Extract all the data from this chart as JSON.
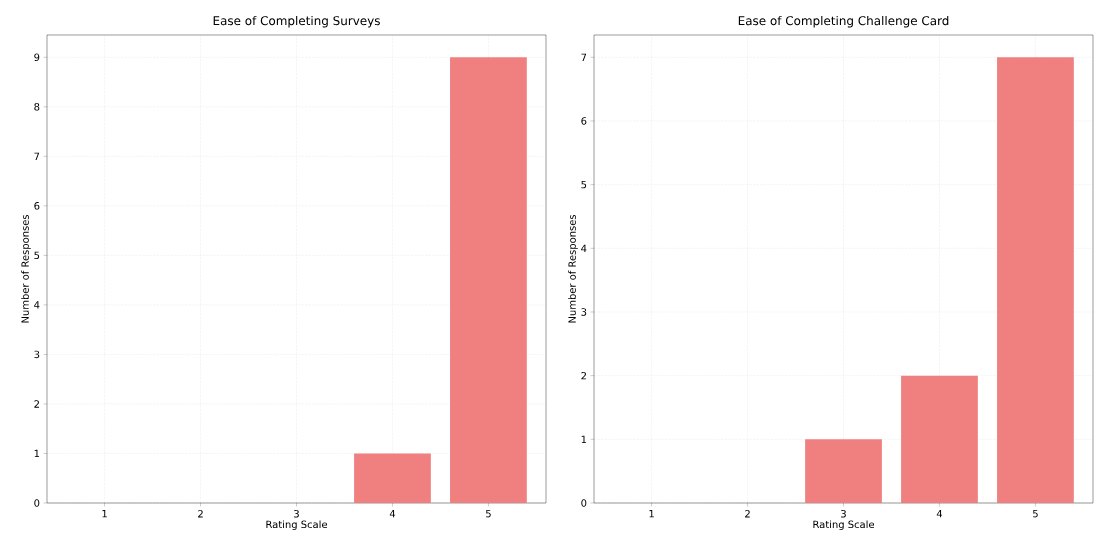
{
  "chart_data": [
    {
      "type": "bar",
      "title": "Ease of Completing Surveys",
      "xlabel": "Rating Scale",
      "ylabel": "Number of Responses",
      "categories": [
        "1",
        "2",
        "3",
        "4",
        "5"
      ],
      "values": [
        0,
        0,
        0,
        1,
        9
      ],
      "color": "#f08080",
      "ylim": [
        0,
        9.45
      ],
      "yticks": [
        0,
        1,
        2,
        3,
        4,
        5,
        6,
        7,
        8,
        9
      ],
      "grid": true
    },
    {
      "type": "bar",
      "title": "Ease of Completing Challenge Card",
      "xlabel": "Rating Scale",
      "ylabel": "Number of Responses",
      "categories": [
        "1",
        "2",
        "3",
        "4",
        "5"
      ],
      "values": [
        0,
        0,
        1,
        2,
        7
      ],
      "color": "#f08080",
      "ylim": [
        0,
        7.35
      ],
      "yticks": [
        0,
        1,
        2,
        3,
        4,
        5,
        6,
        7
      ],
      "grid": true
    }
  ]
}
